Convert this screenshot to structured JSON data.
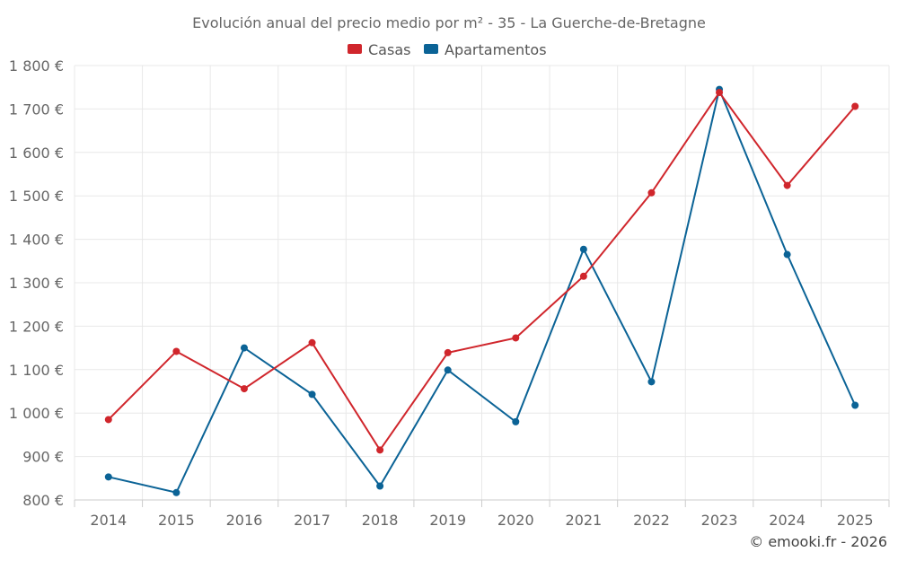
{
  "chart_data": {
    "type": "line",
    "title": "Evolución anual del precio medio por m² - 35 - La Guerche-de-Bretagne",
    "categories": [
      "2014",
      "2015",
      "2016",
      "2017",
      "2018",
      "2019",
      "2020",
      "2021",
      "2022",
      "2023",
      "2024",
      "2025"
    ],
    "series": [
      {
        "name": "Casas",
        "color": "#d0262c",
        "values": [
          985,
          1142,
          1056,
          1162,
          915,
          1139,
          1173,
          1315,
          1507,
          1738,
          1524,
          1706
        ]
      },
      {
        "name": "Apartamentos",
        "color": "#0b6396",
        "values": [
          853,
          817,
          1150,
          1043,
          832,
          1099,
          980,
          1377,
          1072,
          1745,
          1365,
          1018
        ]
      }
    ],
    "ylim": [
      800,
      1800
    ],
    "yticks": [
      800,
      900,
      1000,
      1100,
      1200,
      1300,
      1400,
      1500,
      1600,
      1700,
      1800
    ],
    "ytick_labels": [
      "800 €",
      "900 €",
      "1 000 €",
      "1 100 €",
      "1 200 €",
      "1 300 €",
      "1 400 €",
      "1 500 €",
      "1 600 €",
      "1 700 €",
      "1 800 €"
    ],
    "xlabel": "",
    "ylabel": "",
    "grid": true,
    "legend": "top-center"
  },
  "credit": "© emooki.fr - 2026"
}
